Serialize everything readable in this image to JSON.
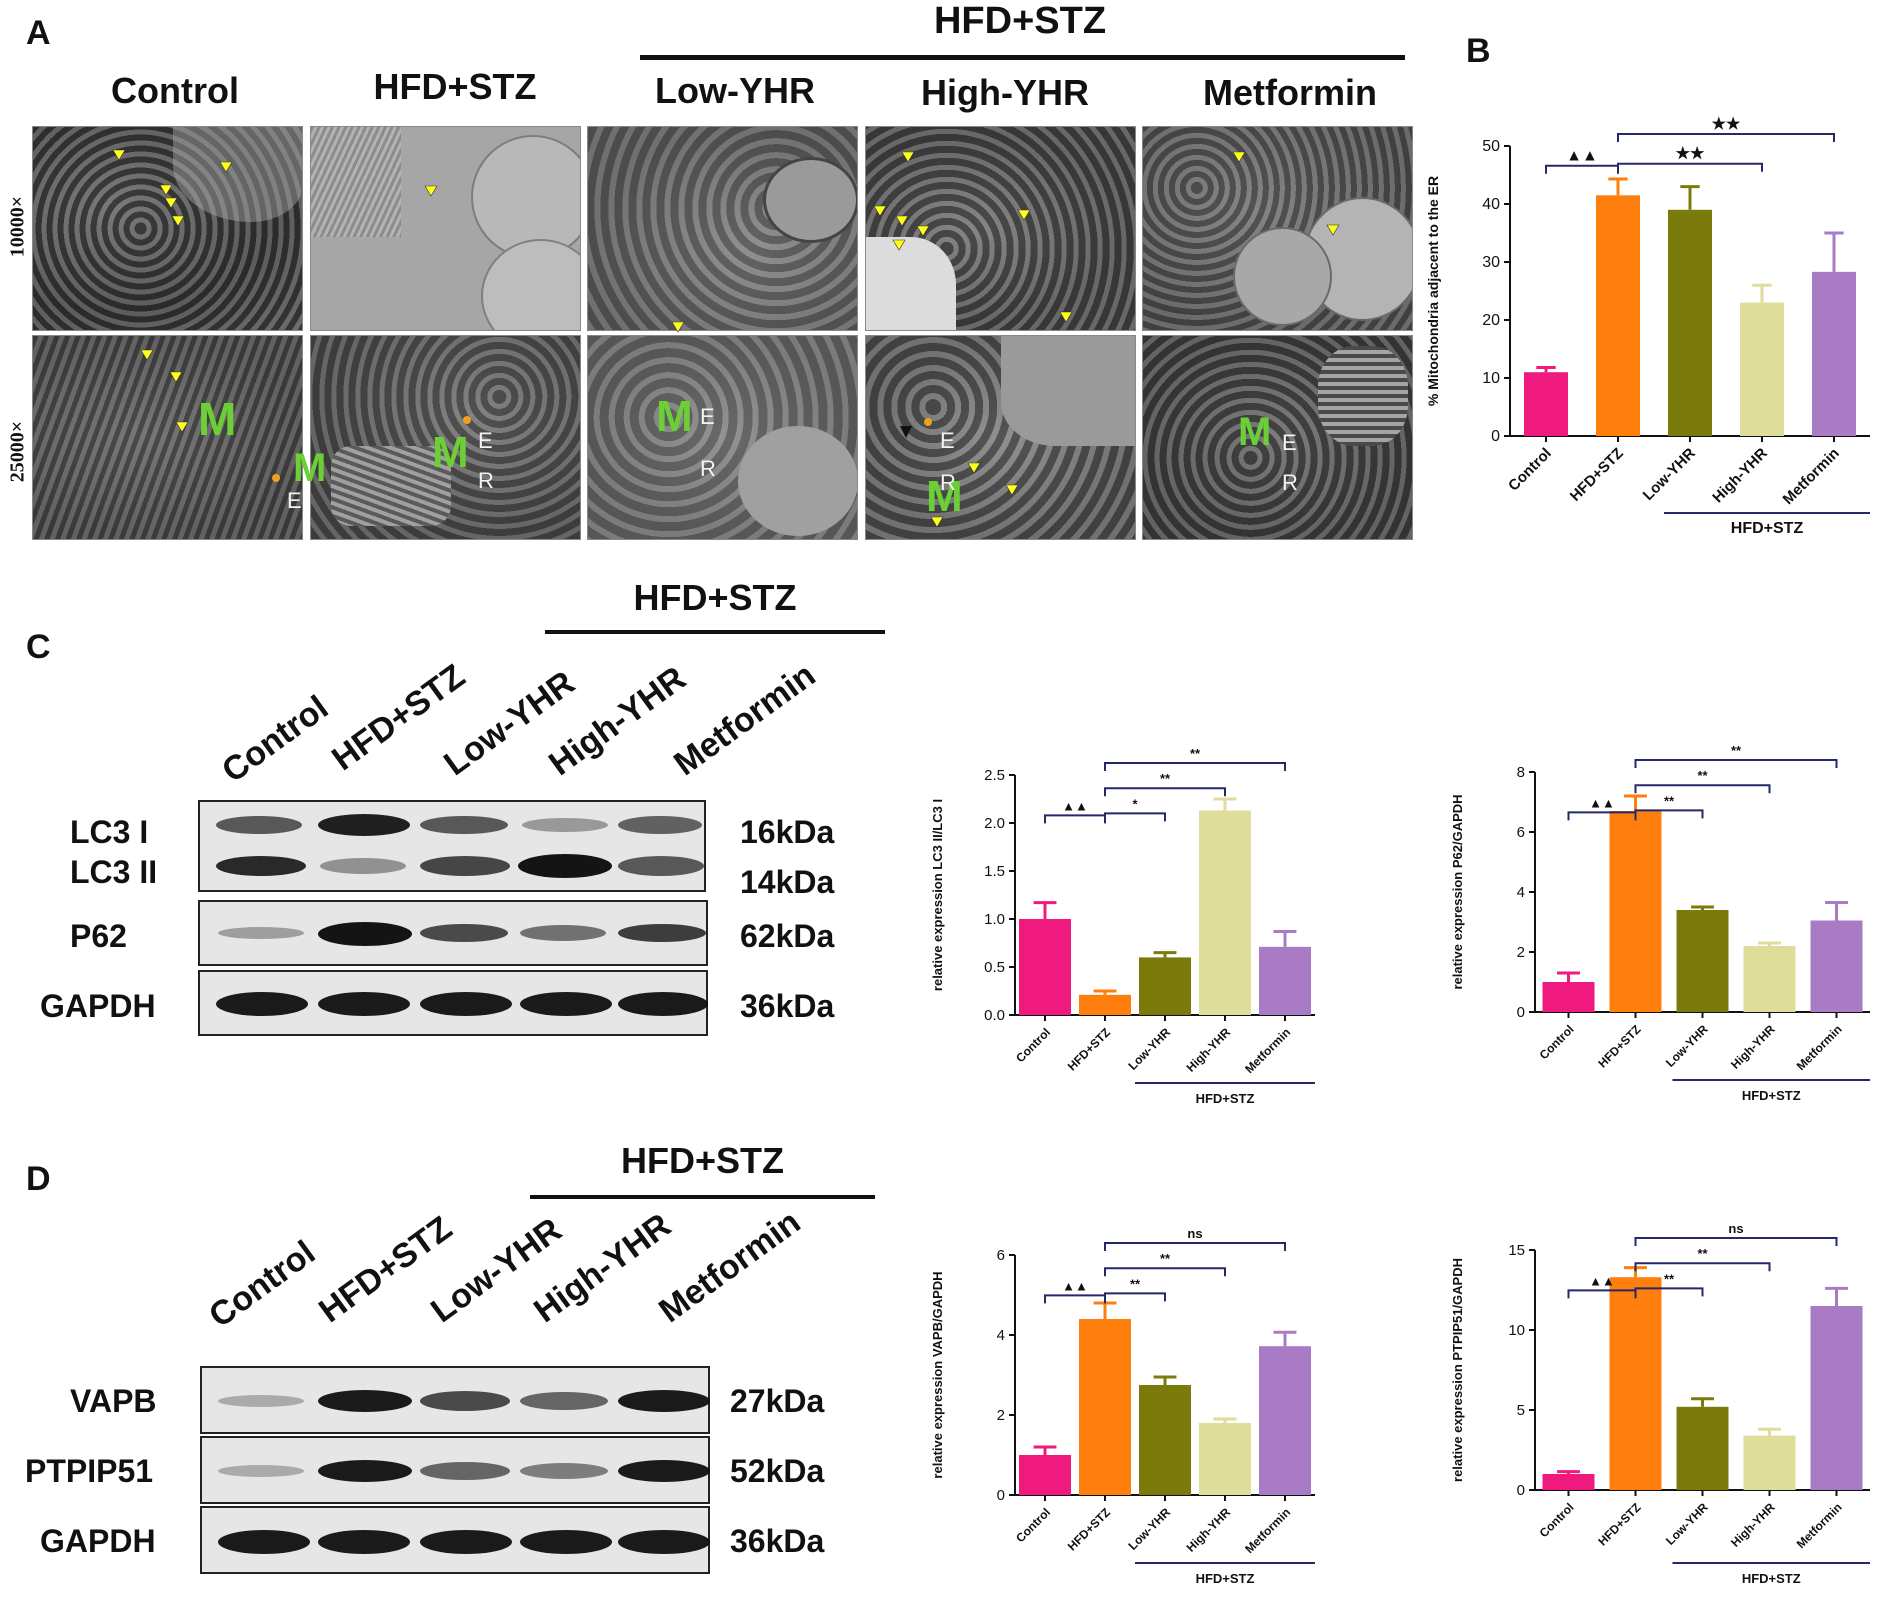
{
  "panel_labels": {
    "a": "A",
    "b": "B",
    "c": "C",
    "d": "D"
  },
  "panel_a": {
    "group_header": "HFD+STZ",
    "columns": [
      "Control",
      "HFD+STZ",
      "Low-YHR",
      "High-YHR",
      "Metformin"
    ],
    "rows": [
      "10000×",
      "25000×"
    ],
    "overlay": {
      "mito": "M",
      "er1": "E",
      "er2": "R"
    }
  },
  "panel_c": {
    "group_header": "HFD+STZ",
    "lanes": [
      "Control",
      "HFD+STZ",
      "Low-YHR",
      "High-YHR",
      "Metformin"
    ],
    "proteins": [
      "LC3 I",
      "LC3 II",
      "P62",
      "GAPDH"
    ],
    "kda": [
      "16kDa",
      "14kDa",
      "62kDa",
      "36kDa"
    ]
  },
  "panel_d": {
    "group_header": "HFD+STZ",
    "lanes": [
      "Control",
      "HFD+STZ",
      "Low-YHR",
      "High-YHR",
      "Metformin"
    ],
    "proteins": [
      "VAPB",
      "PTPIP51",
      "GAPDH"
    ],
    "kda": [
      "27kDa",
      "52kDa",
      "36kDa"
    ]
  },
  "colors": {
    "control": "#f0197d",
    "hfd": "#ff7f0e",
    "low": "#7b7b0b",
    "high": "#dede9a",
    "met": "#a97bc4",
    "bracket": "#25286b"
  },
  "chart_data": [
    {
      "id": "B",
      "type": "bar",
      "categories": [
        "Control",
        "HFD+STZ",
        "Low-YHR",
        "High-YHR",
        "Metformin"
      ],
      "values": [
        11,
        41.5,
        39,
        23,
        28.3
      ],
      "errors": [
        0.8,
        2.8,
        4,
        3,
        6.7
      ],
      "ylabel": "% Mitochondria adjacent to the ER",
      "ylim": [
        0,
        50
      ],
      "yticks": [
        "0",
        "10",
        "20",
        "30",
        "40",
        "50"
      ],
      "group_label": "HFD+STZ",
      "significance": [
        {
          "from": 0,
          "to": 1,
          "label": "▲▲"
        },
        {
          "from": 1,
          "to": 3,
          "label": "★★"
        },
        {
          "from": 1,
          "to": 4,
          "label": "★★"
        }
      ]
    },
    {
      "id": "C1",
      "type": "bar",
      "categories": [
        "Control",
        "HFD+STZ",
        "Low-YHR",
        "High-YHR",
        "Metformin"
      ],
      "values": [
        1.0,
        0.21,
        0.6,
        2.13,
        0.71
      ],
      "errors": [
        0.17,
        0.04,
        0.05,
        0.12,
        0.16
      ],
      "ylabel": "relative expression LC3 II/LC3 I",
      "ylim": [
        0,
        2.5
      ],
      "yticks": [
        "0.0",
        "0.5",
        "1.0",
        "1.5",
        "2.0",
        "2.5"
      ],
      "group_label": "HFD+STZ",
      "significance": [
        {
          "from": 0,
          "to": 1,
          "label": "▲▲"
        },
        {
          "from": 1,
          "to": 2,
          "label": "*"
        },
        {
          "from": 1,
          "to": 3,
          "label": "**"
        },
        {
          "from": 1,
          "to": 4,
          "label": "**"
        }
      ]
    },
    {
      "id": "C2",
      "type": "bar",
      "categories": [
        "Control",
        "HFD+STZ",
        "Low-YHR",
        "High-YHR",
        "Metformin"
      ],
      "values": [
        1.0,
        6.7,
        3.4,
        2.2,
        3.05
      ],
      "errors": [
        0.3,
        0.5,
        0.1,
        0.1,
        0.6
      ],
      "ylabel": "relative expression P62/GAPDH",
      "ylim": [
        0,
        8
      ],
      "yticks": [
        "0",
        "2",
        "4",
        "6",
        "8"
      ],
      "group_label": "HFD+STZ",
      "significance": [
        {
          "from": 0,
          "to": 1,
          "label": "▲▲"
        },
        {
          "from": 1,
          "to": 2,
          "label": "**"
        },
        {
          "from": 1,
          "to": 3,
          "label": "**"
        },
        {
          "from": 1,
          "to": 4,
          "label": "**"
        }
      ]
    },
    {
      "id": "D1",
      "type": "bar",
      "categories": [
        "Control",
        "HFD+STZ",
        "Low-YHR",
        "High-YHR",
        "Metformin"
      ],
      "values": [
        1.0,
        4.4,
        2.75,
        1.8,
        3.72
      ],
      "errors": [
        0.2,
        0.4,
        0.2,
        0.1,
        0.35
      ],
      "ylabel": "relative expression VAPB/GAPDH",
      "ylim": [
        0,
        6
      ],
      "yticks": [
        "0",
        "2",
        "4",
        "6"
      ],
      "group_label": "HFD+STZ",
      "significance": [
        {
          "from": 0,
          "to": 1,
          "label": "▲▲"
        },
        {
          "from": 1,
          "to": 2,
          "label": "**"
        },
        {
          "from": 1,
          "to": 3,
          "label": "**"
        },
        {
          "from": 1,
          "to": 4,
          "label": "ns"
        }
      ]
    },
    {
      "id": "D2",
      "type": "bar",
      "categories": [
        "Control",
        "HFD+STZ",
        "Low-YHR",
        "High-YHR",
        "Metformin"
      ],
      "values": [
        1.0,
        13.3,
        5.2,
        3.4,
        11.5
      ],
      "errors": [
        0.15,
        0.6,
        0.5,
        0.4,
        1.1
      ],
      "ylabel": "relative expression PTPIP51/GAPDH",
      "ylim": [
        0,
        15
      ],
      "yticks": [
        "0",
        "5",
        "10",
        "15"
      ],
      "group_label": "HFD+STZ",
      "significance": [
        {
          "from": 0,
          "to": 1,
          "label": "▲▲"
        },
        {
          "from": 1,
          "to": 2,
          "label": "**"
        },
        {
          "from": 1,
          "to": 3,
          "label": "**"
        },
        {
          "from": 1,
          "to": 4,
          "label": "ns"
        }
      ]
    }
  ]
}
